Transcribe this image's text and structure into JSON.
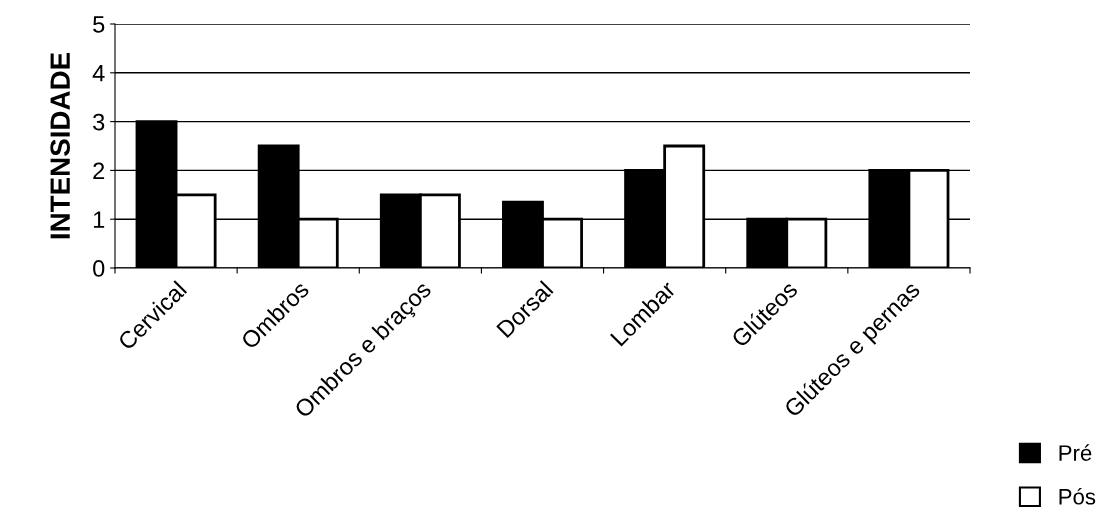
{
  "chart_data": {
    "type": "bar",
    "ylabel": "INTENSIDADE",
    "categories": [
      "Cervical",
      "Ombros",
      "Ombros e braços",
      "Dorsal",
      "Lombar",
      "Glúteos",
      "Glúteos e pernas"
    ],
    "series": [
      {
        "name": "Pré",
        "color": "#000000",
        "values": [
          3,
          2.5,
          1.5,
          1.35,
          2,
          1,
          2
        ]
      },
      {
        "name": "Pós",
        "color": "#ffffff",
        "values": [
          1.5,
          1,
          1.5,
          1,
          2.5,
          1,
          2
        ]
      }
    ],
    "ylim": [
      0,
      5
    ],
    "yticks": [
      0,
      1,
      2,
      3,
      4,
      5
    ],
    "grid": "y",
    "legend": "bottom right"
  }
}
